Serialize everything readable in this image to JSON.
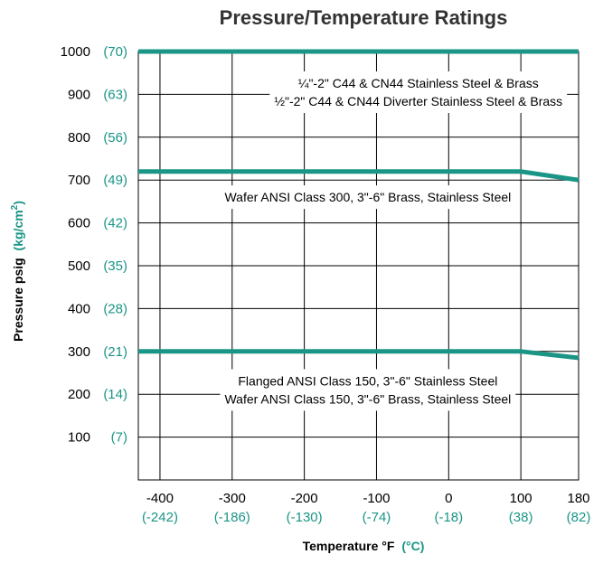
{
  "chart_data": {
    "type": "line",
    "title": "Pressure/Temperature Ratings",
    "ylabel": "Pressure psig",
    "ylabel_unit": "(kg/cm",
    "ylabel_unit_sup": "2",
    "ylabel_unit_close": ")",
    "xlabel": "Temperature °F",
    "xlabel_unit": "(°C)",
    "xlim": [
      -430,
      180
    ],
    "ylim": [
      0,
      1000
    ],
    "grid": true,
    "x_ticks": [
      {
        "value": -400,
        "label": "-400",
        "sublabel": "(-242)"
      },
      {
        "value": -300,
        "label": "-300",
        "sublabel": "(-186)"
      },
      {
        "value": -200,
        "label": "-200",
        "sublabel": "(-130)"
      },
      {
        "value": -100,
        "label": "-100",
        "sublabel": "(-74)"
      },
      {
        "value": 0,
        "label": "0",
        "sublabel": "(-18)"
      },
      {
        "value": 100,
        "label": "100",
        "sublabel": "(38)"
      },
      {
        "value": 180,
        "label": "180",
        "sublabel": "(82)"
      }
    ],
    "y_ticks": [
      {
        "value": 1000,
        "label": "1000",
        "sublabel": "(70)"
      },
      {
        "value": 900,
        "label": "900",
        "sublabel": "(63)"
      },
      {
        "value": 800,
        "label": "800",
        "sublabel": "(56)"
      },
      {
        "value": 700,
        "label": "700",
        "sublabel": "(49)"
      },
      {
        "value": 600,
        "label": "600",
        "sublabel": "(42)"
      },
      {
        "value": 500,
        "label": "500",
        "sublabel": "(35)"
      },
      {
        "value": 400,
        "label": "400",
        "sublabel": "(28)"
      },
      {
        "value": 300,
        "label": "300",
        "sublabel": "(21)"
      },
      {
        "value": 200,
        "label": "200",
        "sublabel": "(14)"
      },
      {
        "value": 100,
        "label": "100",
        "sublabel": "(7)"
      }
    ],
    "series": [
      {
        "x": [
          -430,
          180
        ],
        "y": [
          1000,
          1000
        ]
      },
      {
        "x": [
          -430,
          100,
          180
        ],
        "y": [
          720,
          720,
          700
        ]
      },
      {
        "x": [
          -430,
          100,
          180
        ],
        "y": [
          300,
          300,
          285
        ]
      }
    ],
    "annotations": [
      {
        "lines": [
          "¼\"-2\" C44 & CN44 Stainless Steel & Brass",
          "½\"-2\" C44 & CN44 Diverter Stainless Steel & Brass"
        ],
        "x": -42,
        "y": 905
      },
      {
        "lines": [
          "Wafer ANSI Class 300, 3\"-6\" Brass, Stainless Steel"
        ],
        "x": -112,
        "y": 660
      },
      {
        "lines": [
          "Flanged ANSI Class 150, 3\"-6\" Stainless Steel",
          "Wafer ANSI Class 150, 3\"-6\" Brass, Stainless Steel"
        ],
        "x": -112,
        "y": 210
      }
    ],
    "colors": {
      "series": "#1a9586",
      "secondary_label": "#1a9586",
      "grid": "#000000",
      "text": "#000000"
    }
  }
}
